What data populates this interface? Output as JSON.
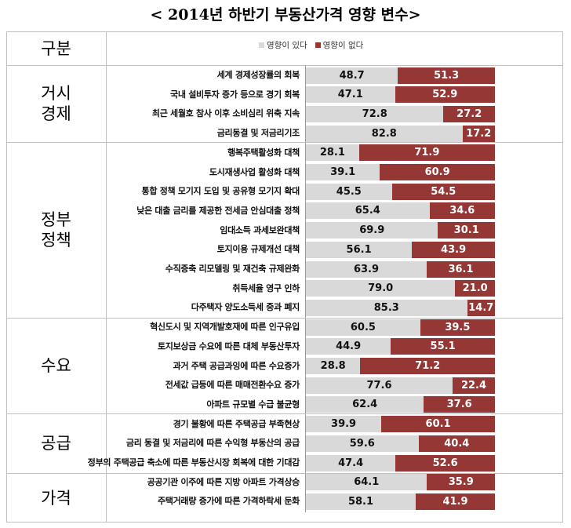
{
  "title": "< 2014년 하반기 부동산가격 영향 변수>",
  "header": {
    "category_col": "구분"
  },
  "colors": {
    "yes": "#d9d9d9",
    "no": "#953735"
  },
  "chart_data": {
    "type": "bar",
    "stacked": true,
    "orientation": "horizontal",
    "xlim": [
      0,
      100
    ],
    "legend": "top-center",
    "series_names": [
      "영향이 있다",
      "영향이 없다"
    ],
    "groups": [
      {
        "name": "거시\n경제",
        "items": [
          {
            "label": "세계 경제성장률의 회복",
            "yes": 48.7,
            "no": 51.3
          },
          {
            "label": "국내 설비투자 증가 등으로 경기 회복",
            "yes": 47.1,
            "no": 52.9
          },
          {
            "label": "최근 세월호 참사 이후 소비심리 위축 지속",
            "yes": 72.8,
            "no": 27.2
          },
          {
            "label": "금리동결 및 저금리기조",
            "yes": 82.8,
            "no": 17.2
          }
        ]
      },
      {
        "name": "정부\n정책",
        "items": [
          {
            "label": "행복주택활성화 대책",
            "yes": 28.1,
            "no": 71.9
          },
          {
            "label": "도시재생사업 활성화 대책",
            "yes": 39.1,
            "no": 60.9
          },
          {
            "label": "통합 정책 모기지 도입 및 공유형 모기지 확대",
            "yes": 45.5,
            "no": 54.5
          },
          {
            "label": "낮은 대출 금리를 제공한 전세금 안심대출 정책",
            "yes": 65.4,
            "no": 34.6
          },
          {
            "label": "임대소득 과세보완대책",
            "yes": 69.9,
            "no": 30.1
          },
          {
            "label": "토지이용 규제개선 대책",
            "yes": 56.1,
            "no": 43.9
          },
          {
            "label": "수직증축 리모델링 및 재건축 규제완화",
            "yes": 63.9,
            "no": 36.1
          },
          {
            "label": "취득세율 영구 인하",
            "yes": 79.0,
            "no": 21.0
          },
          {
            "label": "다주택자 양도소득세 중과 폐지",
            "yes": 85.3,
            "no": 14.7
          }
        ]
      },
      {
        "name": "수요",
        "items": [
          {
            "label": "혁신도시 및 지역개발호재에 따른 인구유입",
            "yes": 60.5,
            "no": 39.5
          },
          {
            "label": "토지보상금 수요에 따른 대체 부동산투자",
            "yes": 44.9,
            "no": 55.1
          },
          {
            "label": "과거 주택 공급과잉에 따른 수요증가",
            "yes": 28.8,
            "no": 71.2
          },
          {
            "label": "전세값 급등에 따른 매매전환수요 증가",
            "yes": 77.6,
            "no": 22.4
          },
          {
            "label": "아파트 규모별 수급 불균형",
            "yes": 62.4,
            "no": 37.6
          }
        ]
      },
      {
        "name": "공급",
        "items": [
          {
            "label": "경기 불황에 따른 주택공급 부족현상",
            "yes": 39.9,
            "no": 60.1
          },
          {
            "label": "금리 동결 및 저금리에 따른 수익형 부동산의 공급",
            "yes": 59.6,
            "no": 40.4
          },
          {
            "label": "정부의 주택공급 축소에 따른 부동산시장 회복에 대한 기대감",
            "yes": 47.4,
            "no": 52.6
          }
        ]
      },
      {
        "name": "가격",
        "items": [
          {
            "label": "공공기관 이주에 따른 지방 아파트 가격상승",
            "yes": 64.1,
            "no": 35.9
          },
          {
            "label": "주택거래량 증가에 따른 가격하락세 둔화",
            "yes": 58.1,
            "no": 41.9
          }
        ]
      }
    ]
  }
}
